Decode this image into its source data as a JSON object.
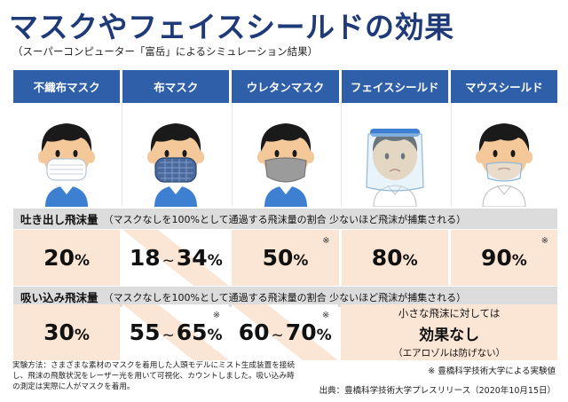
{
  "title": "マスクやフェイスシールドの効果",
  "subtitle": "（スーパーコンピューター「富岳」によるシミュレーション結果）",
  "columns": [
    "不織布マスク",
    "布マスク",
    "ウレタンマスク",
    "フェイスシールド",
    "マウスシールド"
  ],
  "exhale": {
    "label": "吐き出し飛沫量",
    "desc": "（マスクなしを100%として通過する飛沫量の割合  少ないほど飛沫が捕集される）",
    "values": [
      {
        "a": "20",
        "unit": "%"
      },
      {
        "a": "18",
        "tilde": "~",
        "b": "34",
        "unit": "%"
      },
      {
        "a": "50",
        "unit": "%",
        "note": "※"
      },
      {
        "a": "80",
        "unit": "%"
      },
      {
        "a": "90",
        "unit": "%",
        "note": "※"
      }
    ]
  },
  "inhale": {
    "label": "吸い込み飛沫量",
    "desc": "（マスクなしを100%として通過する飛沫量の割合  少ないほど飛沫が捕集される）",
    "values": [
      {
        "a": "30",
        "unit": "%"
      },
      {
        "a": "55",
        "tilde": "~",
        "b": "65",
        "unit": "%",
        "note": "※"
      },
      {
        "a": "60",
        "tilde": "~",
        "b": "70",
        "unit": "%",
        "note": "※"
      }
    ],
    "merged": {
      "line1": "小さな飛沫に対しては",
      "line2": "効果なし",
      "line3": "（エアロゾルは防げない）"
    }
  },
  "footer": {
    "method": "実験方法：さまざまな素材のマスクを着用した人頭モデルにミスト生成装置を接続し、飛沫の飛散状況をレーザー光を用いて可視化、カウントしました。吸い込み時の測定は実際に人がマスクを着用。",
    "note": "※ 豊橋科学技術大学による実験値",
    "source": "出典：豊橋科学技術大学プレスリリース（2020年10月15日）"
  },
  "colors": {
    "title": "#1f3a78",
    "header": "#2e5fa8",
    "value_bg": "#fbe6d6",
    "section_bg": "#dcdcdc",
    "skin": "#f5c89a",
    "hair": "#1a1a1a",
    "shirt": "#3d7fd1"
  },
  "icons": [
    "nonwoven-mask-person-icon",
    "cloth-mask-person-icon",
    "urethane-mask-person-icon",
    "face-shield-person-icon",
    "mouth-shield-person-icon"
  ]
}
